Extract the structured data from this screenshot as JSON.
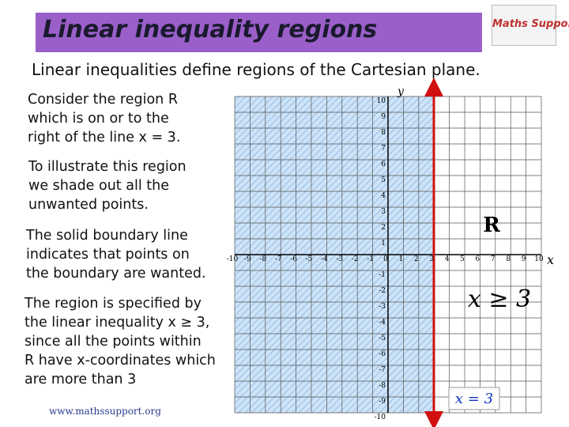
{
  "header": {
    "title": "Linear inequality regions",
    "logo": "Maths Support"
  },
  "subtitle": "Linear inequalities define regions of the Cartesian plane.",
  "paragraphs": [
    {
      "lines": [
        "Consider the region R",
        "which is on or to the",
        "right of the line x = 3."
      ]
    },
    {
      "lines": [
        "To illustrate this region",
        "we shade out all the",
        "unwanted points."
      ]
    },
    {
      "lines": [
        "The solid boundary line",
        "indicates that points on",
        "the boundary are wanted."
      ]
    },
    {
      "lines": [
        "The region is specified by",
        "the linear inequality x ≥ 3,",
        "since all the points within",
        "R have x-coordinates which",
        "are more than 3"
      ]
    }
  ],
  "graph": {
    "x_axis_label": "x",
    "y_axis_label": "y",
    "x_tick_labels": [
      "-10",
      "-9",
      "-8",
      "-7",
      "-6",
      "-5",
      "-4",
      "-3",
      "-2",
      "-1",
      "0",
      "1",
      "2",
      "3",
      "4",
      "5",
      "6",
      "7",
      "8",
      "9",
      "10"
    ],
    "y_tick_labels": [
      "10",
      "9",
      "8",
      "7",
      "6",
      "5",
      "4",
      "3",
      "2",
      "1",
      "-1",
      "-2",
      "-3",
      "-4",
      "-5",
      "-6",
      "-7",
      "-8",
      "-9",
      "-10"
    ],
    "region_label": "R",
    "inequality": "x ≥ 3",
    "boundary_label": "x = 3"
  },
  "footer": "www.mathssupport.org"
}
